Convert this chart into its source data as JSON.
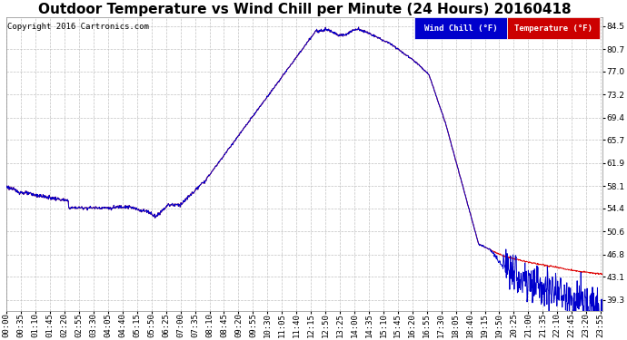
{
  "title": "Outdoor Temperature vs Wind Chill per Minute (24 Hours) 20160418",
  "copyright": "Copyright 2016 Cartronics.com",
  "legend_wind_chill": "Wind Chill (°F)",
  "legend_temperature": "Temperature (°F)",
  "yticks": [
    39.3,
    43.1,
    46.8,
    50.6,
    54.4,
    58.1,
    61.9,
    65.7,
    69.4,
    73.2,
    77.0,
    80.7,
    84.5
  ],
  "ymin": 37.5,
  "ymax": 86.0,
  "background_color": "#ffffff",
  "plot_bg_color": "#ffffff",
  "grid_color": "#bbbbbb",
  "temp_color": "#dd0000",
  "wind_chill_color": "#0000cc",
  "title_fontsize": 11,
  "axis_fontsize": 6.5,
  "legend_wc_bg": "#0000cc",
  "legend_temp_bg": "#cc0000"
}
